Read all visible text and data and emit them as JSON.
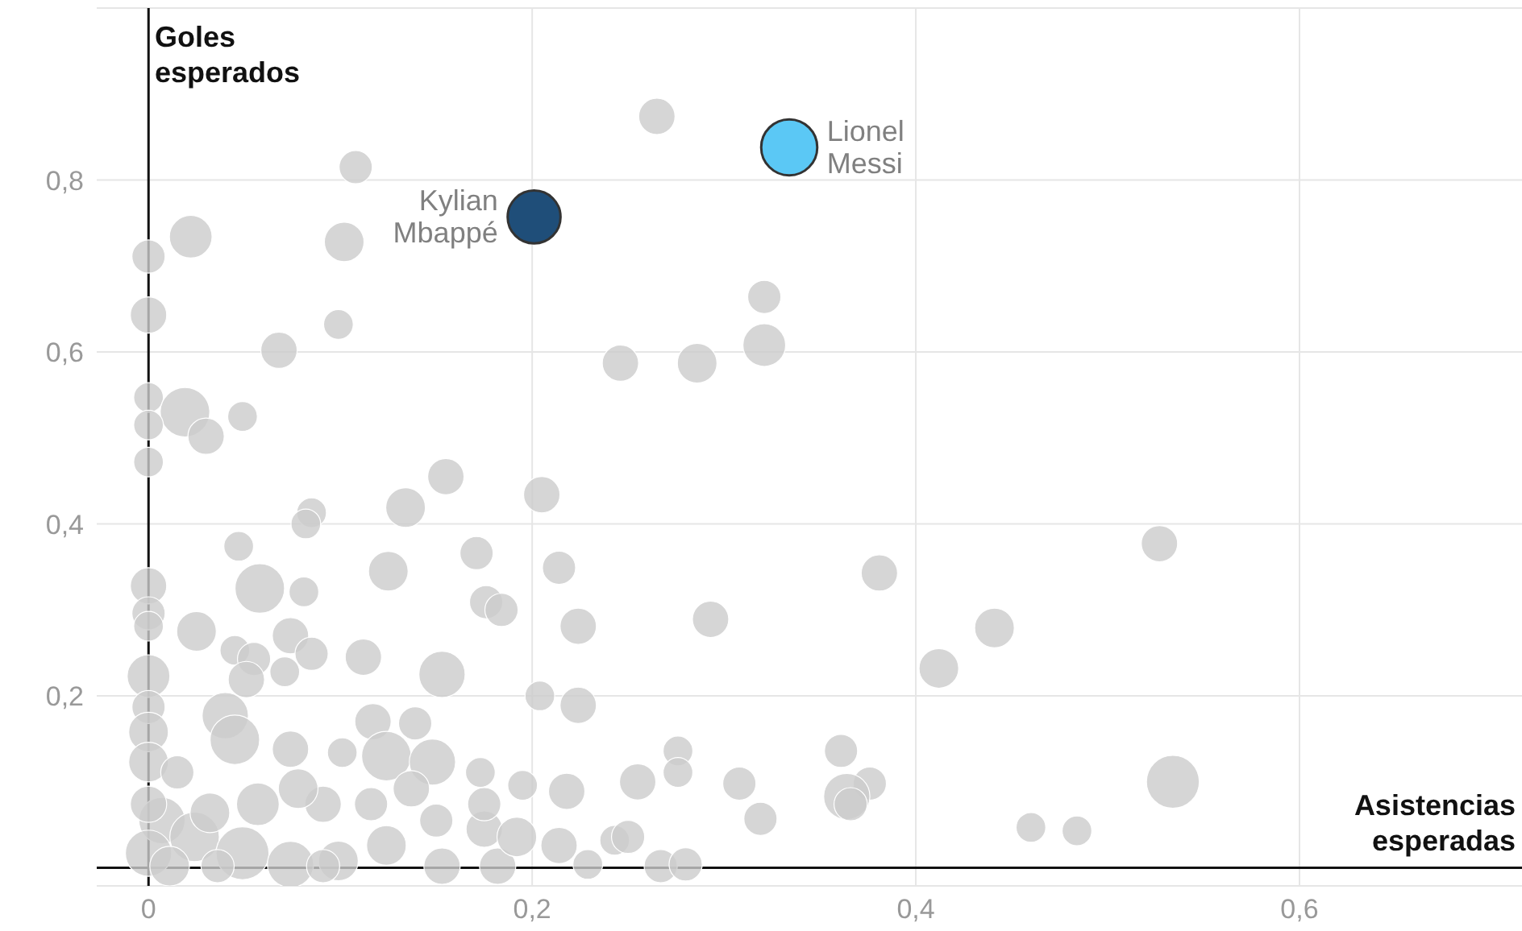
{
  "chart_data": {
    "type": "bubble",
    "xlabel": "Asistencias esperadas",
    "ylabel": "Goles esperados",
    "xlim": [
      -0.027,
      0.716
    ],
    "ylim": [
      -0.021,
      1.0
    ],
    "xticks": [
      {
        "value": 0,
        "label": "0"
      },
      {
        "value": 0.2,
        "label": "0,2"
      },
      {
        "value": 0.4,
        "label": "0,4"
      },
      {
        "value": 0.6,
        "label": "0,6"
      }
    ],
    "yticks": [
      {
        "value": 0.2,
        "label": "0,2"
      },
      {
        "value": 0.4,
        "label": "0,4"
      },
      {
        "value": 0.6,
        "label": "0,6"
      },
      {
        "value": 0.8,
        "label": "0,8"
      }
    ],
    "grid": true,
    "legend": false,
    "series": [
      {
        "color": "#cccccc",
        "x": [
          0.265,
          0.108,
          0.022,
          0.102,
          0,
          0,
          0.321,
          0.099,
          0.068,
          0.321,
          0.246,
          0.286,
          0,
          0.019,
          0.049,
          0,
          0.03,
          0,
          0.155,
          0.205,
          0.085,
          0.082,
          0.134,
          0.527,
          0.171,
          0.381,
          0.214,
          0.125,
          0.047,
          0,
          0.058,
          0.081,
          0.176,
          0.184,
          0,
          0.293,
          0.224,
          0.441,
          0.025,
          0.074,
          0,
          0.085,
          0.112,
          0.045,
          0.055,
          0.071,
          0.153,
          0.412,
          0,
          0.051,
          0.204,
          0.224,
          0,
          0.04,
          0.117,
          0.139,
          0,
          0.045,
          0.074,
          0.101,
          0.124,
          0.148,
          0.276,
          0.361,
          0,
          0.173,
          0.255,
          0.276,
          0.308,
          0.376,
          0.534,
          0.195,
          0.218,
          0.364,
          0.366,
          0.319,
          0.46,
          0.484,
          0.243,
          0.25,
          0.214,
          0.229,
          0.267,
          0.28,
          0.182,
          0.153,
          0.007,
          0.024,
          0.049,
          0.074,
          0.099,
          0.124,
          0.057,
          0.091,
          0.032,
          0,
          0,
          0.15,
          0.175,
          0.192,
          0.116,
          0.137,
          0.078,
          0.015,
          0.175,
          0.011,
          0.036,
          0.091
        ],
        "values": [
          0.874,
          0.815,
          0.734,
          0.728,
          0.711,
          0.643,
          0.664,
          0.632,
          0.602,
          0.608,
          0.587,
          0.587,
          0.547,
          0.53,
          0.525,
          0.515,
          0.502,
          0.472,
          0.455,
          0.434,
          0.413,
          0.4,
          0.419,
          0.377,
          0.366,
          0.343,
          0.349,
          0.345,
          0.374,
          0.328,
          0.325,
          0.321,
          0.309,
          0.3,
          0.296,
          0.289,
          0.281,
          0.279,
          0.275,
          0.27,
          0.281,
          0.249,
          0.245,
          0.253,
          0.243,
          0.228,
          0.225,
          0.232,
          0.223,
          0.219,
          0.2,
          0.189,
          0.187,
          0.177,
          0.17,
          0.168,
          0.158,
          0.149,
          0.138,
          0.134,
          0.13,
          0.123,
          0.136,
          0.136,
          0.123,
          0.111,
          0.1,
          0.111,
          0.098,
          0.098,
          0.1,
          0.096,
          0.089,
          0.083,
          0.074,
          0.057,
          0.047,
          0.043,
          0.032,
          0.036,
          0.026,
          0.004,
          0.002,
          0.004,
          0.002,
          0.002,
          0.055,
          0.036,
          0.017,
          0.004,
          0.008,
          0.026,
          0.074,
          0.074,
          0.064,
          0.074,
          0.017,
          0.055,
          0.045,
          0.036,
          0.074,
          0.092,
          0.092,
          0.111,
          0.074,
          0.002,
          0.002,
          0.002
        ],
        "sizes": [
          0.42,
          0.35,
          0.58,
          0.5,
          0.35,
          0.42,
          0.35,
          0.28,
          0.42,
          0.58,
          0.42,
          0.5,
          0.28,
          0.78,
          0.28,
          0.28,
          0.42,
          0.28,
          0.42,
          0.42,
          0.28,
          0.28,
          0.5,
          0.42,
          0.35,
          0.42,
          0.35,
          0.5,
          0.28,
          0.42,
          0.78,
          0.28,
          0.35,
          0.35,
          0.35,
          0.42,
          0.42,
          0.5,
          0.5,
          0.42,
          0.28,
          0.35,
          0.42,
          0.28,
          0.35,
          0.28,
          0.68,
          0.5,
          0.58,
          0.42,
          0.28,
          0.42,
          0.35,
          0.68,
          0.42,
          0.35,
          0.5,
          0.78,
          0.42,
          0.28,
          0.78,
          0.68,
          0.28,
          0.35,
          0.5,
          0.28,
          0.42,
          0.28,
          0.35,
          0.35,
          0.89,
          0.28,
          0.42,
          0.68,
          0.35,
          0.35,
          0.28,
          0.28,
          0.28,
          0.35,
          0.42,
          0.28,
          0.35,
          0.35,
          0.42,
          0.42,
          0.68,
          0.78,
          0.89,
          0.68,
          0.5,
          0.5,
          0.58,
          0.42,
          0.5,
          0.42,
          0.68,
          0.35,
          0.42,
          0.5,
          0.35,
          0.42,
          0.5,
          0.35,
          0.35,
          0.5,
          0.35,
          0.35
        ]
      },
      {
        "name": "Kylian Mbappé",
        "color": "#1f4e79",
        "x": [
          0.201
        ],
        "values": [
          0.757
        ],
        "sizes": [
          0.89
        ]
      },
      {
        "name": "Lionel Messi",
        "color": "#5bc8f5",
        "x": [
          0.334
        ],
        "values": [
          0.838
        ],
        "sizes": [
          1
        ]
      }
    ]
  }
}
